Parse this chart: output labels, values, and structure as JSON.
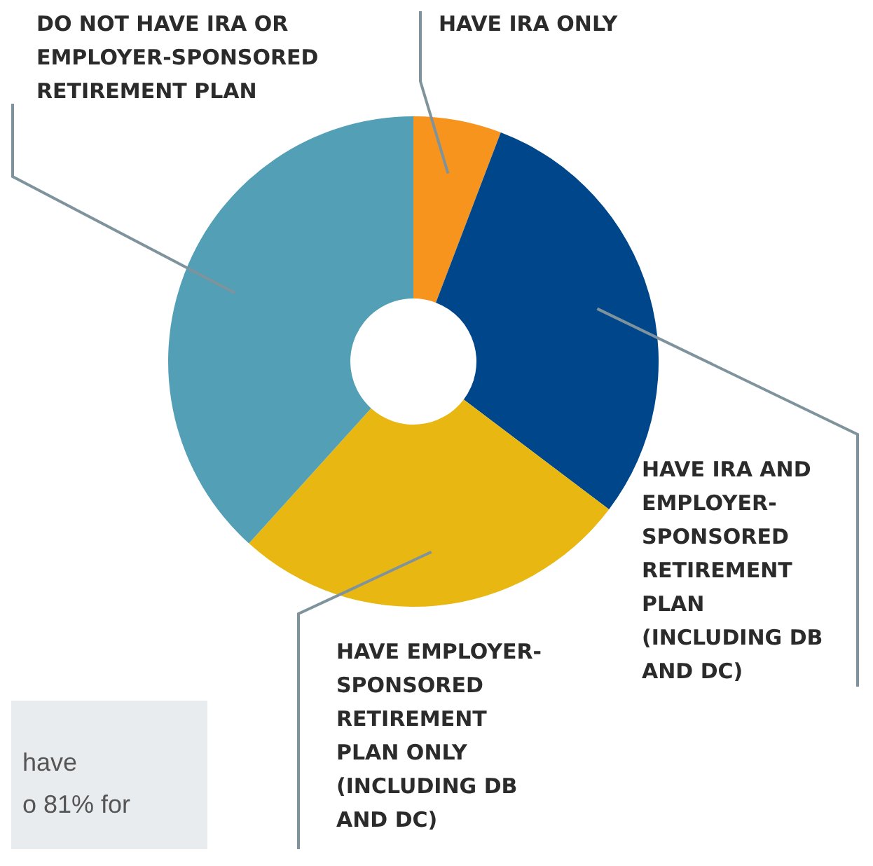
{
  "chart_data": {
    "type": "donut",
    "categories": [
      "HAVE IRA ONLY",
      "HAVE IRA AND EMPLOYER-SPONSORED RETIREMENT PLAN (INCLUDING DB AND DC)",
      "HAVE EMPLOYER-SPONSORED RETIREMENT PLAN ONLY (INCLUDING DB AND DC)",
      "DO NOT HAVE IRA OR EMPLOYER-SPONSORED RETIREMENT PLAN"
    ],
    "values": [
      5.8,
      29.5,
      26.4,
      38.3
    ],
    "colors": [
      "#f7941d",
      "#00468b",
      "#e8b711",
      "#539fb5"
    ],
    "annotations": [
      "have",
      "o 81% for"
    ],
    "legend": false
  }
}
